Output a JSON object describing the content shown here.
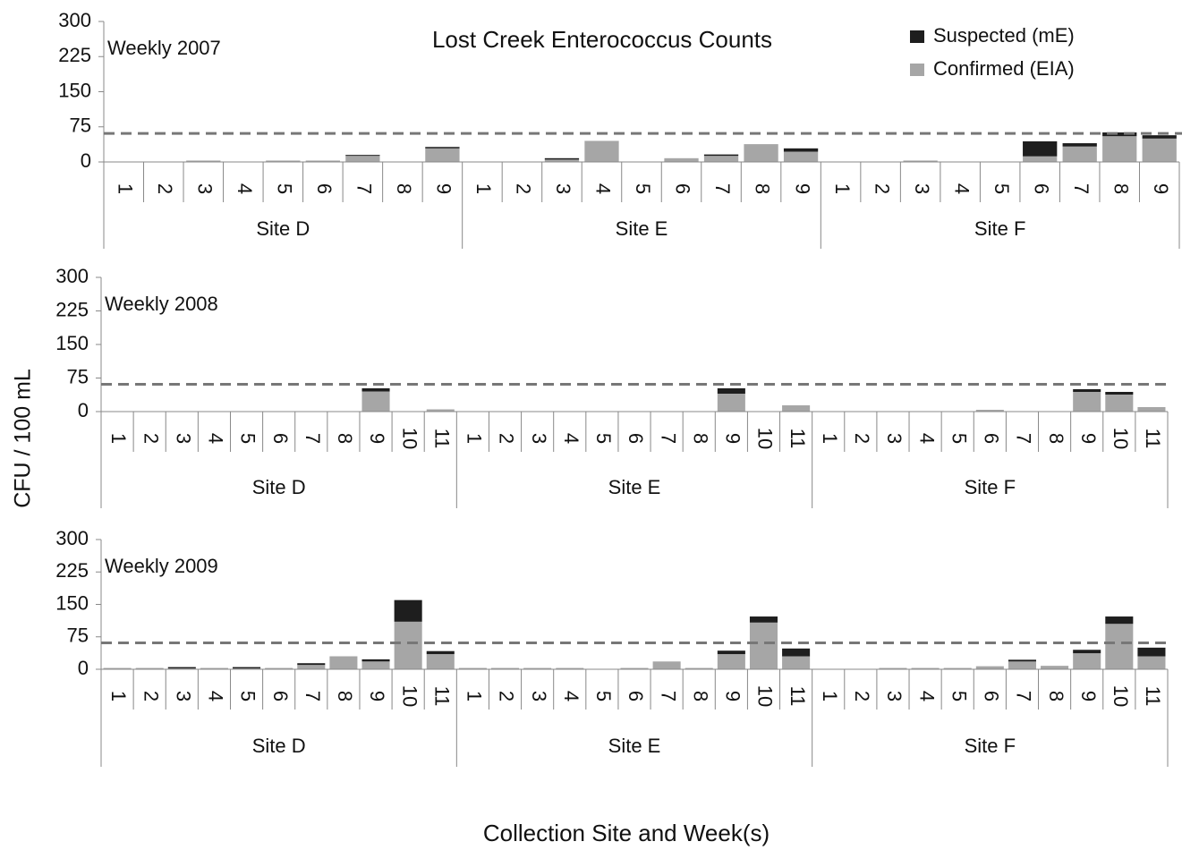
{
  "title": "Lost Creek Enterococcus Counts",
  "y_axis_label": "CFU / 100 mL",
  "x_axis_label": "Collection Site and Week(s)",
  "chart_data": [
    {
      "type": "bar",
      "stacked": true,
      "subtitle": "Weekly 2007",
      "groups": [
        "Site D",
        "Site E",
        "Site F"
      ],
      "categories": [
        [
          "1",
          "2",
          "3",
          "4",
          "5",
          "6",
          "7",
          "8",
          "9"
        ],
        [
          "1",
          "2",
          "3",
          "4",
          "5",
          "6",
          "7",
          "8",
          "9"
        ],
        [
          "1",
          "2",
          "3",
          "4",
          "5",
          "6",
          "7",
          "8",
          "9"
        ]
      ],
      "series": [
        {
          "name": "Suspected (mE)",
          "color": "#1e1e1e",
          "values": [
            [
              0,
              0,
              0,
              0,
              0,
              0,
              2,
              0,
              3
            ],
            [
              0,
              0,
              3,
              0,
              0,
              0,
              3,
              0,
              7
            ],
            [
              0,
              0,
              0,
              0,
              0,
              32,
              7,
              8,
              7
            ]
          ]
        },
        {
          "name": "Confirmed (EIA)",
          "color": "#a6a6a6",
          "values": [
            [
              0,
              0,
              3,
              0,
              3,
              3,
              13,
              0,
              29
            ],
            [
              0,
              0,
              5,
              45,
              0,
              8,
              13,
              38,
              22
            ],
            [
              0,
              0,
              3,
              0,
              0,
              12,
              33,
              55,
              50
            ]
          ]
        }
      ],
      "ylim": [
        0,
        300
      ],
      "yticks": [
        0,
        75,
        150,
        225,
        300
      ],
      "reference_line": 61
    },
    {
      "type": "bar",
      "stacked": true,
      "subtitle": "Weekly 2008",
      "groups": [
        "Site D",
        "Site E",
        "Site F"
      ],
      "categories": [
        [
          "1",
          "2",
          "3",
          "4",
          "5",
          "6",
          "7",
          "8",
          "9",
          "10",
          "11"
        ],
        [
          "1",
          "2",
          "3",
          "4",
          "5",
          "6",
          "7",
          "8",
          "9",
          "10",
          "11"
        ],
        [
          "1",
          "2",
          "3",
          "4",
          "5",
          "6",
          "7",
          "8",
          "9",
          "10",
          "11"
        ]
      ],
      "series": [
        {
          "color": "#1e1e1e",
          "values": [
            [
              0,
              0,
              0,
              0,
              0,
              0,
              0,
              0,
              7,
              0,
              0
            ],
            [
              0,
              0,
              0,
              0,
              0,
              0,
              0,
              0,
              12,
              0,
              0
            ],
            [
              0,
              0,
              0,
              0,
              0,
              0,
              0,
              0,
              6,
              6,
              0
            ]
          ]
        },
        {
          "color": "#a6a6a6",
          "values": [
            [
              0,
              0,
              0,
              0,
              0,
              0,
              0,
              0,
              45,
              0,
              5
            ],
            [
              0,
              0,
              0,
              0,
              0,
              0,
              0,
              0,
              40,
              0,
              14
            ],
            [
              0,
              0,
              0,
              0,
              0,
              4,
              0,
              0,
              44,
              38,
              10
            ]
          ]
        }
      ],
      "ylim": [
        0,
        300
      ],
      "yticks": [
        0,
        75,
        150,
        225,
        300
      ],
      "reference_line": 61
    },
    {
      "type": "bar",
      "stacked": true,
      "subtitle": "Weekly 2009",
      "groups": [
        "Site D",
        "Site E",
        "Site F"
      ],
      "categories": [
        [
          "1",
          "2",
          "3",
          "4",
          "5",
          "6",
          "7",
          "8",
          "9",
          "10",
          "11"
        ],
        [
          "1",
          "2",
          "3",
          "4",
          "5",
          "6",
          "7",
          "8",
          "9",
          "10",
          "11"
        ],
        [
          "1",
          "2",
          "3",
          "4",
          "5",
          "6",
          "7",
          "8",
          "9",
          "10",
          "11"
        ]
      ],
      "series": [
        {
          "color": "#1e1e1e",
          "values": [
            [
              0,
              0,
              3,
              0,
              3,
              0,
              4,
              0,
              5,
              50,
              7
            ],
            [
              0,
              0,
              0,
              0,
              0,
              0,
              0,
              0,
              8,
              14,
              18
            ],
            [
              0,
              0,
              0,
              0,
              0,
              0,
              4,
              0,
              8,
              17,
              20
            ]
          ]
        },
        {
          "color": "#a6a6a6",
          "values": [
            [
              3,
              3,
              2,
              3,
              2,
              3,
              10,
              30,
              18,
              110,
              35
            ],
            [
              3,
              3,
              3,
              3,
              0,
              3,
              18,
              3,
              35,
              108,
              30
            ],
            [
              0,
              0,
              3,
              3,
              3,
              7,
              18,
              8,
              37,
              105,
              30
            ]
          ]
        }
      ],
      "ylim": [
        0,
        300
      ],
      "yticks": [
        0,
        75,
        150,
        225,
        300
      ],
      "reference_line": 61
    }
  ]
}
